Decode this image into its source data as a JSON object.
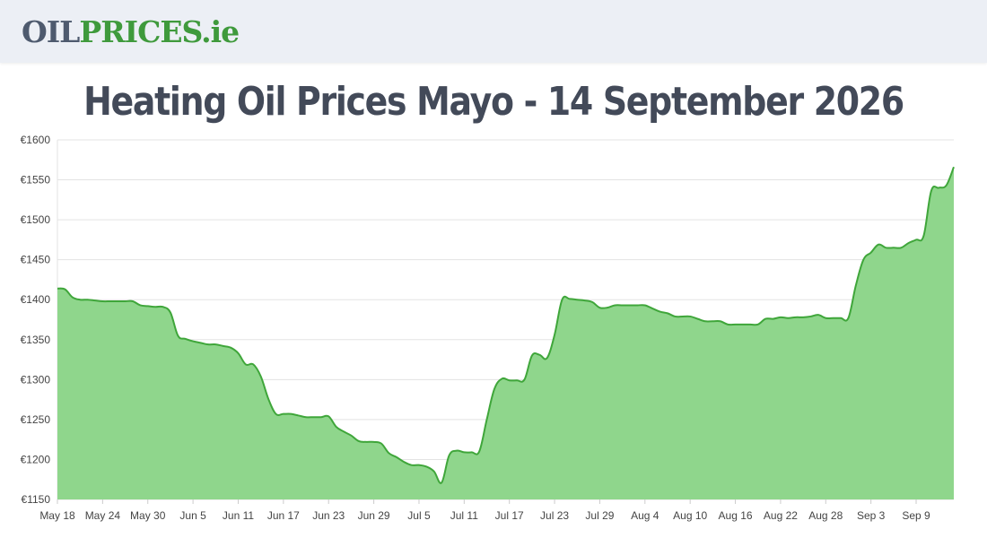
{
  "header": {
    "logo_part1": "OIL",
    "logo_part2": "PRICES",
    "logo_part3": ".ie"
  },
  "page_title": "Heating Oil Prices Mayo - 14 September 2026",
  "colors": {
    "line": "#3fa63a",
    "fill": "#8fd68c",
    "grid": "#e3e3e3",
    "title": "#434a59"
  },
  "chart_data": {
    "type": "area",
    "title": "Heating Oil Prices Mayo - 14 September 2026",
    "xlabel": "",
    "ylabel": "",
    "ylim": [
      1150,
      1600
    ],
    "yticks": [
      1150,
      1200,
      1250,
      1300,
      1350,
      1400,
      1450,
      1500,
      1550,
      1600
    ],
    "ytick_prefix": "€",
    "grid": true,
    "xticks": [
      "May 18",
      "May 24",
      "May 30",
      "Jun 5",
      "Jun 11",
      "Jun 17",
      "Jun 23",
      "Jun 29",
      "Jul 5",
      "Jul 11",
      "Jul 17",
      "Jul 23",
      "Jul 29",
      "Aug 4",
      "Aug 10",
      "Aug 16",
      "Aug 22",
      "Aug 28",
      "Sep 3",
      "Sep 9"
    ],
    "series": [
      {
        "values": [
          {
            "x": "May 18",
            "y": 1414
          },
          {
            "x": "May 19",
            "y": 1413
          },
          {
            "x": "May 20",
            "y": 1403
          },
          {
            "x": "May 21",
            "y": 1400
          },
          {
            "x": "May 22",
            "y": 1400
          },
          {
            "x": "May 23",
            "y": 1399
          },
          {
            "x": "May 24",
            "y": 1398
          },
          {
            "x": "May 25",
            "y": 1398
          },
          {
            "x": "May 26",
            "y": 1398
          },
          {
            "x": "May 27",
            "y": 1398
          },
          {
            "x": "May 28",
            "y": 1398
          },
          {
            "x": "May 29",
            "y": 1393
          },
          {
            "x": "May 30",
            "y": 1392
          },
          {
            "x": "May 31",
            "y": 1391
          },
          {
            "x": "Jun 1",
            "y": 1391
          },
          {
            "x": "Jun 2",
            "y": 1384
          },
          {
            "x": "Jun 3",
            "y": 1355
          },
          {
            "x": "Jun 4",
            "y": 1351
          },
          {
            "x": "Jun 5",
            "y": 1348
          },
          {
            "x": "Jun 6",
            "y": 1346
          },
          {
            "x": "Jun 7",
            "y": 1344
          },
          {
            "x": "Jun 8",
            "y": 1344
          },
          {
            "x": "Jun 9",
            "y": 1342
          },
          {
            "x": "Jun 10",
            "y": 1340
          },
          {
            "x": "Jun 11",
            "y": 1333
          },
          {
            "x": "Jun 12",
            "y": 1319
          },
          {
            "x": "Jun 13",
            "y": 1319
          },
          {
            "x": "Jun 14",
            "y": 1304
          },
          {
            "x": "Jun 15",
            "y": 1276
          },
          {
            "x": "Jun 16",
            "y": 1257
          },
          {
            "x": "Jun 17",
            "y": 1257
          },
          {
            "x": "Jun 18",
            "y": 1257
          },
          {
            "x": "Jun 19",
            "y": 1255
          },
          {
            "x": "Jun 20",
            "y": 1253
          },
          {
            "x": "Jun 21",
            "y": 1253
          },
          {
            "x": "Jun 22",
            "y": 1253
          },
          {
            "x": "Jun 23",
            "y": 1254
          },
          {
            "x": "Jun 24",
            "y": 1241
          },
          {
            "x": "Jun 25",
            "y": 1235
          },
          {
            "x": "Jun 26",
            "y": 1230
          },
          {
            "x": "Jun 27",
            "y": 1223
          },
          {
            "x": "Jun 28",
            "y": 1222
          },
          {
            "x": "Jun 29",
            "y": 1222
          },
          {
            "x": "Jun 30",
            "y": 1220
          },
          {
            "x": "Jul 1",
            "y": 1208
          },
          {
            "x": "Jul 2",
            "y": 1203
          },
          {
            "x": "Jul 3",
            "y": 1197
          },
          {
            "x": "Jul 4",
            "y": 1193
          },
          {
            "x": "Jul 5",
            "y": 1193
          },
          {
            "x": "Jul 6",
            "y": 1191
          },
          {
            "x": "Jul 7",
            "y": 1185
          },
          {
            "x": "Jul 8",
            "y": 1171
          },
          {
            "x": "Jul 9",
            "y": 1205
          },
          {
            "x": "Jul 10",
            "y": 1211
          },
          {
            "x": "Jul 11",
            "y": 1209
          },
          {
            "x": "Jul 12",
            "y": 1209
          },
          {
            "x": "Jul 13",
            "y": 1210
          },
          {
            "x": "Jul 14",
            "y": 1250
          },
          {
            "x": "Jul 15",
            "y": 1288
          },
          {
            "x": "Jul 16",
            "y": 1301
          },
          {
            "x": "Jul 17",
            "y": 1299
          },
          {
            "x": "Jul 18",
            "y": 1299
          },
          {
            "x": "Jul 19",
            "y": 1300
          },
          {
            "x": "Jul 20",
            "y": 1330
          },
          {
            "x": "Jul 21",
            "y": 1331
          },
          {
            "x": "Jul 22",
            "y": 1327
          },
          {
            "x": "Jul 23",
            "y": 1356
          },
          {
            "x": "Jul 24",
            "y": 1400
          },
          {
            "x": "Jul 25",
            "y": 1401
          },
          {
            "x": "Jul 26",
            "y": 1400
          },
          {
            "x": "Jul 27",
            "y": 1399
          },
          {
            "x": "Jul 28",
            "y": 1397
          },
          {
            "x": "Jul 29",
            "y": 1390
          },
          {
            "x": "Jul 30",
            "y": 1390
          },
          {
            "x": "Jul 31",
            "y": 1393
          },
          {
            "x": "Aug 1",
            "y": 1393
          },
          {
            "x": "Aug 2",
            "y": 1393
          },
          {
            "x": "Aug 3",
            "y": 1393
          },
          {
            "x": "Aug 4",
            "y": 1393
          },
          {
            "x": "Aug 5",
            "y": 1389
          },
          {
            "x": "Aug 6",
            "y": 1385
          },
          {
            "x": "Aug 7",
            "y": 1383
          },
          {
            "x": "Aug 8",
            "y": 1379
          },
          {
            "x": "Aug 9",
            "y": 1379
          },
          {
            "x": "Aug 10",
            "y": 1379
          },
          {
            "x": "Aug 11",
            "y": 1376
          },
          {
            "x": "Aug 12",
            "y": 1373
          },
          {
            "x": "Aug 13",
            "y": 1373
          },
          {
            "x": "Aug 14",
            "y": 1373
          },
          {
            "x": "Aug 15",
            "y": 1369
          },
          {
            "x": "Aug 16",
            "y": 1369
          },
          {
            "x": "Aug 17",
            "y": 1369
          },
          {
            "x": "Aug 18",
            "y": 1369
          },
          {
            "x": "Aug 19",
            "y": 1369
          },
          {
            "x": "Aug 20",
            "y": 1376
          },
          {
            "x": "Aug 21",
            "y": 1376
          },
          {
            "x": "Aug 22",
            "y": 1378
          },
          {
            "x": "Aug 23",
            "y": 1377
          },
          {
            "x": "Aug 24",
            "y": 1378
          },
          {
            "x": "Aug 25",
            "y": 1378
          },
          {
            "x": "Aug 26",
            "y": 1379
          },
          {
            "x": "Aug 27",
            "y": 1381
          },
          {
            "x": "Aug 28",
            "y": 1377
          },
          {
            "x": "Aug 29",
            "y": 1377
          },
          {
            "x": "Aug 30",
            "y": 1377
          },
          {
            "x": "Aug 31",
            "y": 1377
          },
          {
            "x": "Sep 1",
            "y": 1418
          },
          {
            "x": "Sep 2",
            "y": 1450
          },
          {
            "x": "Sep 3",
            "y": 1459
          },
          {
            "x": "Sep 4",
            "y": 1469
          },
          {
            "x": "Sep 5",
            "y": 1465
          },
          {
            "x": "Sep 6",
            "y": 1465
          },
          {
            "x": "Sep 7",
            "y": 1465
          },
          {
            "x": "Sep 8",
            "y": 1471
          },
          {
            "x": "Sep 9",
            "y": 1475
          },
          {
            "x": "Sep 10",
            "y": 1480
          },
          {
            "x": "Sep 11",
            "y": 1536
          },
          {
            "x": "Sep 12",
            "y": 1540
          },
          {
            "x": "Sep 13",
            "y": 1543
          },
          {
            "x": "Sep 14",
            "y": 1566
          }
        ]
      }
    ]
  }
}
